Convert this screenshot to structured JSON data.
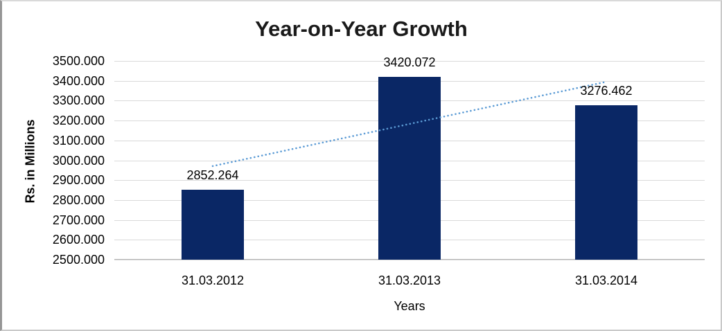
{
  "chart_data": {
    "type": "bar",
    "title": "Year-on-Year Growth",
    "xlabel": "Years",
    "ylabel": "Rs. in Millions",
    "categories": [
      "31.03.2012",
      "31.03.2013",
      "31.03.2014"
    ],
    "values": [
      2852.264,
      3420.072,
      3276.462
    ],
    "data_labels": [
      "2852.264",
      "3420.072",
      "3276.462"
    ],
    "ylim": [
      2500,
      3500
    ],
    "ytick_step": 100,
    "ytick_labels": [
      "3500.000",
      "3400.000",
      "3300.000",
      "3200.000",
      "3100.000",
      "3000.000",
      "2900.000",
      "2800.000",
      "2700.000",
      "2600.000",
      "2500.000"
    ],
    "grid": true,
    "legend": "none",
    "trendline": {
      "type": "linear",
      "style": "round-dot",
      "color": "#5b9bd5"
    },
    "colors": {
      "bar": "#0a2765",
      "gridline": "#d9d9d9",
      "axis_line": "#b3b3b3",
      "title_text": "#1a1a1a",
      "label_text": "#000000",
      "background": "#ffffff"
    }
  }
}
